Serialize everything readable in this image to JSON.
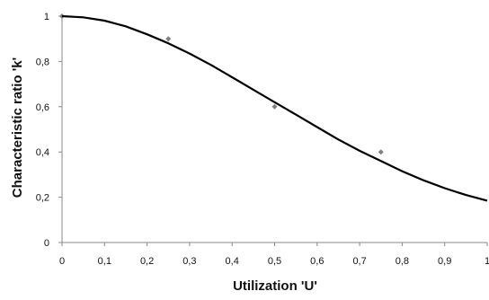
{
  "chart_data": {
    "type": "scatter",
    "title": "",
    "xlabel": "Utilization 'U'",
    "ylabel": "Characteristic ratio 'k'",
    "xlim": [
      0,
      1
    ],
    "ylim": [
      0,
      1
    ],
    "x_ticks": [
      "0",
      "0,1",
      "0,2",
      "0,3",
      "0,4",
      "0,5",
      "0,6",
      "0,7",
      "0,8",
      "0,9",
      "1"
    ],
    "y_ticks": [
      "0",
      "0,2",
      "0,4",
      "0,6",
      "0,8",
      "1"
    ],
    "grid": false,
    "legend": "none",
    "series": [
      {
        "kind": "points",
        "color": "#7f7f7f",
        "x": [
          0,
          0.25,
          0.5,
          0.75
        ],
        "y": [
          1.0,
          0.9,
          0.6,
          0.4
        ]
      },
      {
        "kind": "line",
        "color": "#000000",
        "x": [
          0,
          0.05,
          0.1,
          0.15,
          0.2,
          0.25,
          0.3,
          0.35,
          0.4,
          0.45,
          0.5,
          0.55,
          0.6,
          0.65,
          0.7,
          0.75,
          0.8,
          0.85,
          0.9,
          0.95,
          1.0
        ],
        "y": [
          1.0,
          0.995,
          0.98,
          0.955,
          0.92,
          0.88,
          0.835,
          0.785,
          0.73,
          0.675,
          0.62,
          0.565,
          0.51,
          0.455,
          0.405,
          0.36,
          0.315,
          0.275,
          0.24,
          0.21,
          0.185
        ]
      }
    ]
  }
}
